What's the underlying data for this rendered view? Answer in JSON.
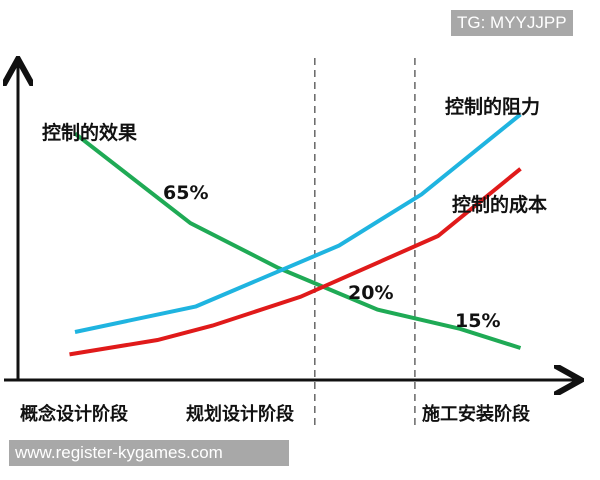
{
  "chart_data": {
    "type": "line",
    "xlim": [
      0,
      10
    ],
    "ylim": [
      0,
      10
    ],
    "grid": false,
    "categories": [
      "概念设计阶段",
      "规划设计阶段",
      "施工安装阶段"
    ],
    "stage_dividers": [
      5.36,
      7.18
    ],
    "series": [
      {
        "name": "控制的效果",
        "color": "#1faa55",
        "x": [
          1.0,
          3.1,
          4.7,
          6.5,
          8.0,
          9.1
        ],
        "y": [
          7.7,
          4.9,
          3.5,
          2.2,
          1.6,
          1.0
        ]
      },
      {
        "name": "控制的阻力",
        "color": "#1fb4e0",
        "x": [
          1.0,
          3.2,
          5.8,
          7.3,
          9.1
        ],
        "y": [
          1.5,
          2.3,
          4.2,
          5.8,
          8.3
        ]
      },
      {
        "name": "控制的成本",
        "color": "#e01a1a",
        "x": [
          0.9,
          2.5,
          3.5,
          5.1,
          7.6,
          9.1
        ],
        "y": [
          0.8,
          1.25,
          1.7,
          2.6,
          4.5,
          6.6
        ]
      }
    ],
    "annotations": [
      "65%",
      "20%",
      "15%"
    ]
  },
  "watermarks": {
    "top": "TG: MYYJJPP",
    "bottom": "www.register-kygames.com"
  }
}
